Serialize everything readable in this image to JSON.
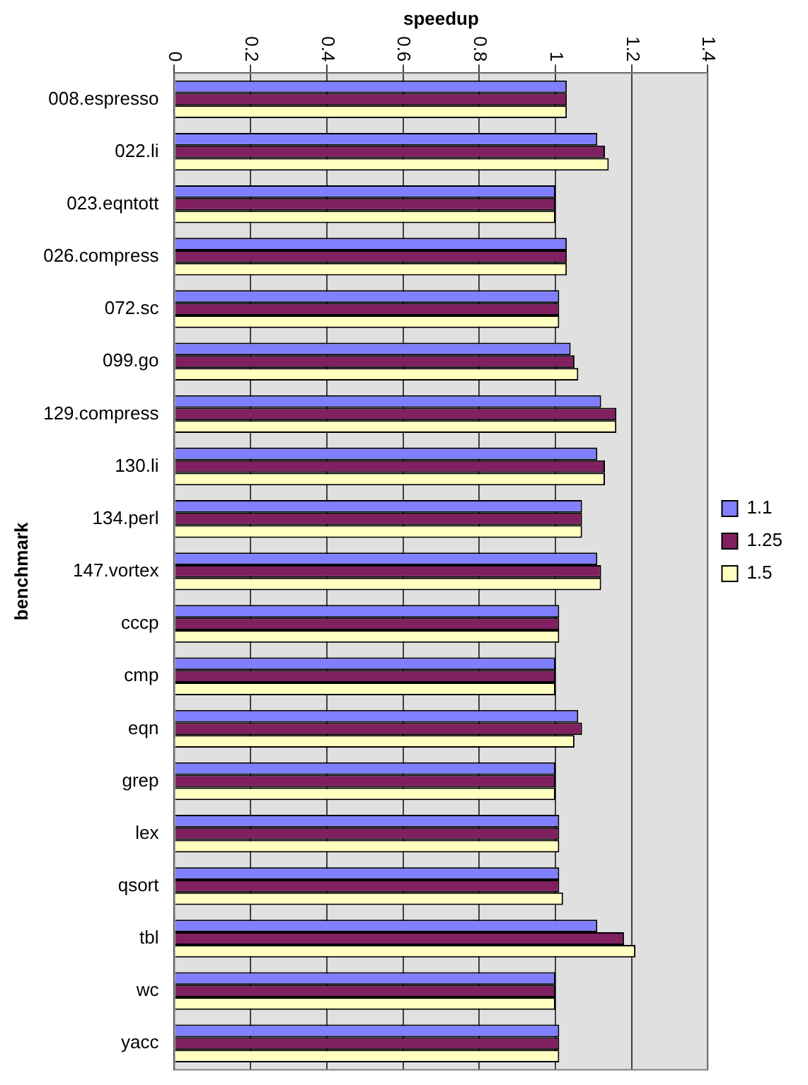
{
  "chart_data": {
    "type": "bar",
    "orientation": "horizontal",
    "xlabel": "speedup",
    "ylabel": "benchmark",
    "categories": [
      "008.espresso",
      "022.li",
      "023.eqntott",
      "026.compress",
      "072.sc",
      "099.go",
      "129.compress",
      "130.li",
      "134.perl",
      "147.vortex",
      "cccp",
      "cmp",
      "eqn",
      "grep",
      "lex",
      "qsort",
      "tbl",
      "wc",
      "yacc"
    ],
    "series": [
      {
        "name": "1.1",
        "color": "#8080ff",
        "values": [
          1.03,
          1.11,
          1.0,
          1.03,
          1.01,
          1.04,
          1.12,
          1.11,
          1.07,
          1.11,
          1.01,
          1.0,
          1.06,
          1.0,
          1.01,
          1.01,
          1.11,
          1.0,
          1.01
        ]
      },
      {
        "name": "1.25",
        "color": "#802060",
        "values": [
          1.03,
          1.13,
          1.0,
          1.03,
          1.01,
          1.05,
          1.16,
          1.13,
          1.07,
          1.12,
          1.01,
          1.0,
          1.07,
          1.0,
          1.01,
          1.01,
          1.18,
          1.0,
          1.01
        ]
      },
      {
        "name": "1.5",
        "color": "#ffffc0",
        "values": [
          1.03,
          1.14,
          1.0,
          1.03,
          1.01,
          1.06,
          1.16,
          1.13,
          1.07,
          1.12,
          1.01,
          1.0,
          1.05,
          1.0,
          1.01,
          1.02,
          1.21,
          1.0,
          1.01
        ]
      }
    ],
    "xlim": [
      0,
      1.4
    ],
    "xticks": [
      0,
      0.2,
      0.4,
      0.6,
      0.8,
      1,
      1.2,
      1.4
    ],
    "grid": "x",
    "legend": "right"
  }
}
